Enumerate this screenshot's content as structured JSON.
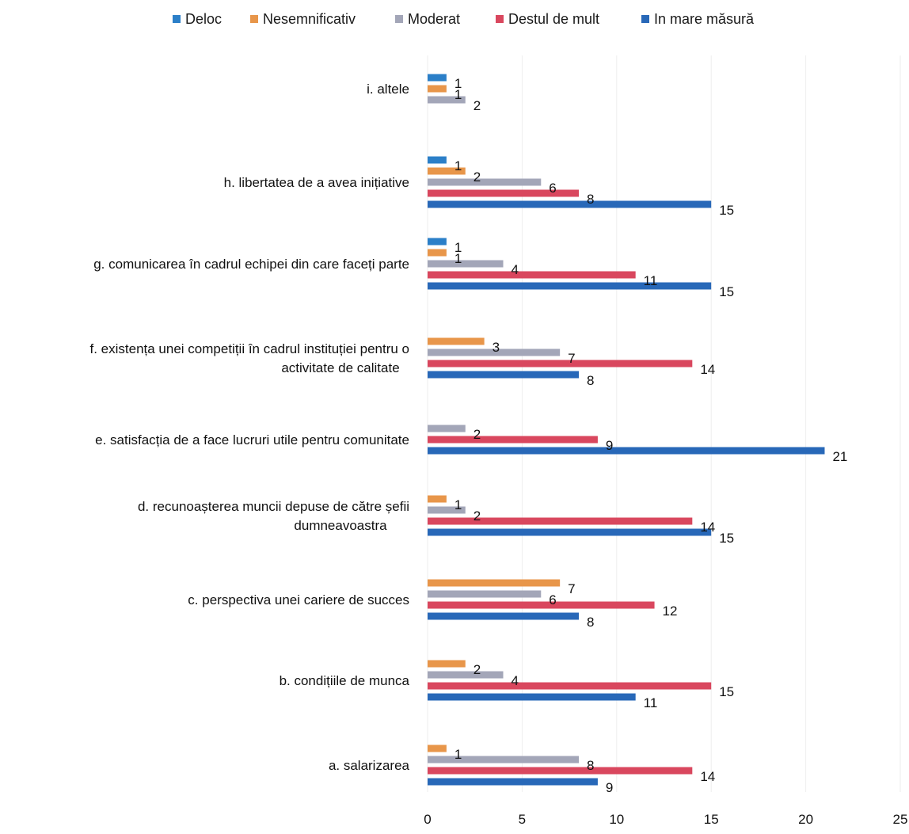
{
  "chart_data": {
    "type": "bar",
    "orientation": "horizontal",
    "categories": [
      [
        "a. salarizarea"
      ],
      [
        "b. condițiile de munca"
      ],
      [
        "c. perspectiva unei cariere de succes"
      ],
      [
        "d. recunoașterea muncii depuse de către șefii",
        "dumneavoastra"
      ],
      [
        "e. satisfacția de a face lucruri utile pentru comunitate"
      ],
      [
        "f. existența unei competiții în cadrul instituției pentru o",
        "activitate de calitate"
      ],
      [
        "g. comunicarea în cadrul echipei din care faceți parte"
      ],
      [
        "h. libertatea de a avea inițiative"
      ],
      [
        "i. altele"
      ]
    ],
    "series": [
      {
        "name": "Deloc",
        "color": "#2b7fc8",
        "values": [
          0,
          0,
          0,
          0,
          0,
          0,
          1,
          1,
          1
        ]
      },
      {
        "name": "Nesemnificativ",
        "color": "#e8964a",
        "values": [
          1,
          2,
          7,
          1,
          0,
          3,
          1,
          2,
          1
        ]
      },
      {
        "name": "Moderat",
        "color": "#a3a6b8",
        "values": [
          8,
          4,
          6,
          2,
          2,
          7,
          4,
          6,
          2
        ]
      },
      {
        "name": "Destul de mult",
        "color": "#d9475e",
        "values": [
          14,
          15,
          12,
          14,
          9,
          14,
          11,
          8,
          0
        ]
      },
      {
        "name": "In mare măsură",
        "color": "#2868b8",
        "values": [
          9,
          11,
          8,
          15,
          21,
          8,
          15,
          15,
          0
        ]
      }
    ],
    "xlim": [
      0,
      25
    ],
    "xticks": [
      "0",
      "5",
      "10",
      "15",
      "20",
      "25"
    ],
    "legend_position": "top",
    "grid": true
  }
}
